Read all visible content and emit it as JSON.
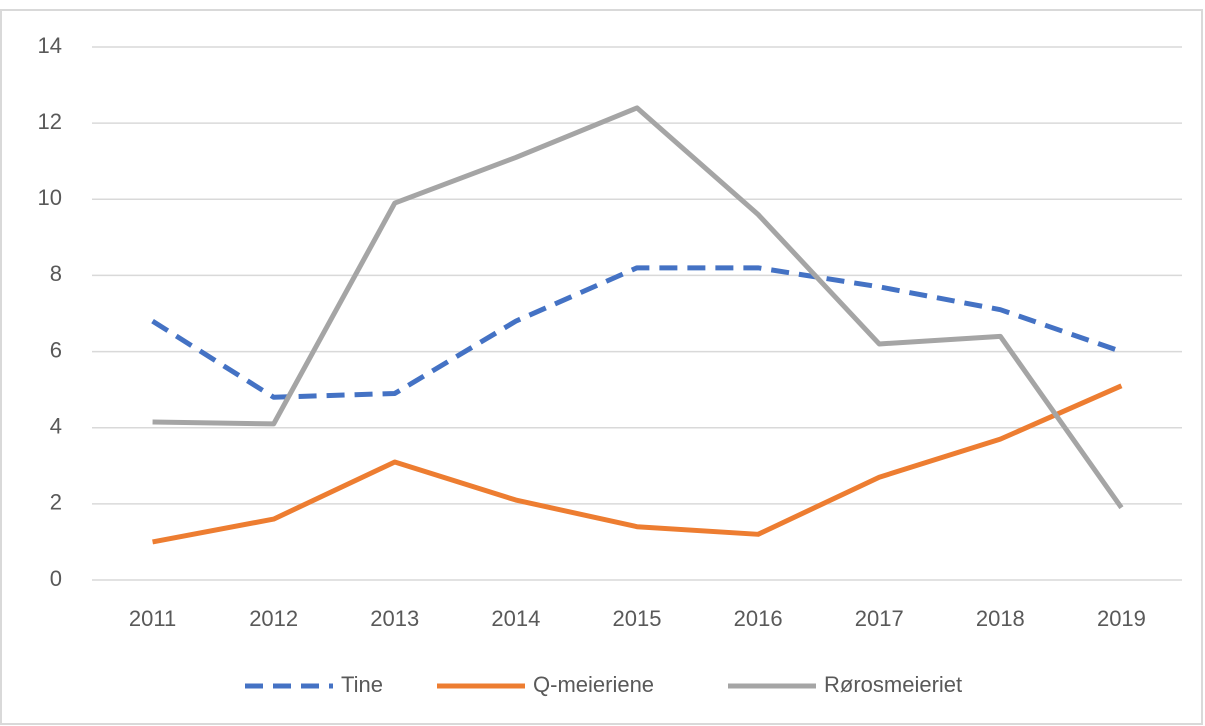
{
  "chart_data": {
    "type": "line",
    "categories": [
      "2011",
      "2012",
      "2013",
      "2014",
      "2015",
      "2016",
      "2017",
      "2018",
      "2019"
    ],
    "series": [
      {
        "name": "Tine",
        "color": "#4472c4",
        "line_style": "dashed",
        "values": [
          6.8,
          4.8,
          4.9,
          6.8,
          8.2,
          8.2,
          7.7,
          7.1,
          6.0
        ]
      },
      {
        "name": "Q-meieriene",
        "color": "#ed7d31",
        "line_style": "solid",
        "values": [
          1.0,
          1.6,
          3.1,
          2.1,
          1.4,
          1.2,
          2.7,
          3.7,
          5.1
        ]
      },
      {
        "name": "Rørosmeieriet",
        "color": "#a5a5a5",
        "line_style": "solid",
        "values": [
          4.15,
          4.1,
          9.9,
          11.1,
          12.4,
          9.6,
          6.2,
          6.4,
          1.9
        ]
      }
    ],
    "ylim": [
      0,
      14
    ],
    "yticks": [
      0,
      2,
      4,
      6,
      8,
      10,
      12,
      14
    ],
    "grid": true,
    "legend": "bottom"
  }
}
